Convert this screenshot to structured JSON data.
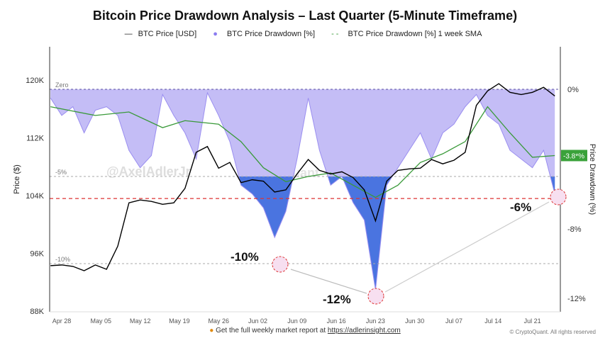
{
  "chart_data": {
    "type": "line",
    "title": "Bitcoin Price Drawdown Analysis – Last Quarter (5-Minute Timeframe)",
    "legend": {
      "placement": "top",
      "entries": [
        "BTC Price [USD]",
        "BTC Price Drawdown [%]",
        "BTC Price Drawdown [%] 1 week SMA"
      ]
    },
    "ylabel_left": "Price ($)",
    "ylabel_right": "Price Drawdown (%)",
    "left_ticks": [
      "120K",
      "112K",
      "104K",
      "96K",
      "88K"
    ],
    "left_tick_values": [
      120000,
      112000,
      104000,
      96000,
      88000
    ],
    "right_ticks": [
      "0%",
      "-8%",
      "-12%"
    ],
    "right_tick_values": [
      0,
      -8,
      -12
    ],
    "x_ticks": [
      "Apr 28",
      "May 05",
      "May 12",
      "May 19",
      "May 26",
      "Jun 02",
      "Jun 09",
      "Jun 16",
      "Jun 23",
      "Jun 30",
      "Jul 07",
      "Jul 14",
      "Jul 21"
    ],
    "x_tick_dates": [
      "2025-04-28",
      "2025-05-05",
      "2025-05-12",
      "2025-05-19",
      "2025-05-26",
      "2025-06-02",
      "2025-06-09",
      "2025-06-16",
      "2025-06-23",
      "2025-06-30",
      "2025-07-07",
      "2025-07-14",
      "2025-07-21"
    ],
    "x": [
      "2025-04-26",
      "2025-04-28",
      "2025-04-30",
      "2025-05-02",
      "2025-05-04",
      "2025-05-06",
      "2025-05-08",
      "2025-05-10",
      "2025-05-12",
      "2025-05-14",
      "2025-05-16",
      "2025-05-18",
      "2025-05-20",
      "2025-05-22",
      "2025-05-24",
      "2025-05-26",
      "2025-05-28",
      "2025-05-30",
      "2025-06-01",
      "2025-06-03",
      "2025-06-05",
      "2025-06-07",
      "2025-06-09",
      "2025-06-11",
      "2025-06-13",
      "2025-06-15",
      "2025-06-17",
      "2025-06-19",
      "2025-06-21",
      "2025-06-23",
      "2025-06-25",
      "2025-06-27",
      "2025-06-29",
      "2025-07-01",
      "2025-07-03",
      "2025-07-05",
      "2025-07-07",
      "2025-07-09",
      "2025-07-11",
      "2025-07-13",
      "2025-07-15",
      "2025-07-17",
      "2025-07-19",
      "2025-07-21",
      "2025-07-23",
      "2025-07-25"
    ],
    "series": [
      {
        "name": "BTC Price [USD]",
        "color": "#000000",
        "values": [
          94300,
          94400,
          94200,
          93600,
          94400,
          93800,
          97000,
          103000,
          103400,
          103200,
          102800,
          103000,
          105000,
          110000,
          110800,
          107800,
          108600,
          105800,
          106200,
          106000,
          104500,
          104800,
          107000,
          109000,
          107500,
          107000,
          107300,
          106500,
          104800,
          100500,
          106000,
          107500,
          107700,
          107800,
          109000,
          108400,
          108900,
          110000,
          116500,
          118500,
          119500,
          118300,
          118000,
          118300,
          119000,
          117800
        ]
      },
      {
        "name": "BTC Price Drawdown [%]",
        "color": "#8b7cf0",
        "values": [
          -0.5,
          -1.5,
          -1.0,
          -2.5,
          -1.2,
          -1.0,
          -1.5,
          -3.5,
          -4.5,
          -3.8,
          -0.3,
          -1.5,
          -2.5,
          -4.0,
          -0.2,
          -1.5,
          -3.0,
          -5.5,
          -6.0,
          -6.8,
          -8.5,
          -7.0,
          -4.0,
          -0.5,
          -3.5,
          -5.5,
          -5.0,
          -6.5,
          -7.5,
          -11.5,
          -5.5,
          -4.5,
          -3.5,
          -2.5,
          -4.0,
          -2.5,
          -2.0,
          -1.0,
          -0.3,
          -1.5,
          -2.0,
          -3.5,
          -4.0,
          -4.5,
          -3.5,
          -6.0
        ]
      },
      {
        "name": "BTC Price Drawdown [%] 1 week SMA",
        "color": "#3a9a3a",
        "x": [
          "2025-04-26",
          "2025-05-04",
          "2025-05-10",
          "2025-05-16",
          "2025-05-20",
          "2025-05-26",
          "2025-05-30",
          "2025-06-03",
          "2025-06-07",
          "2025-06-11",
          "2025-06-15",
          "2025-06-19",
          "2025-06-23",
          "2025-06-27",
          "2025-07-01",
          "2025-07-05",
          "2025-07-09",
          "2025-07-13",
          "2025-07-17",
          "2025-07-21",
          "2025-07-25"
        ],
        "values": [
          -1.0,
          -1.5,
          -1.3,
          -2.2,
          -1.8,
          -2.0,
          -3.0,
          -4.5,
          -5.3,
          -5.0,
          -4.8,
          -5.5,
          -6.2,
          -5.5,
          -4.2,
          -3.7,
          -3.0,
          -1.0,
          -2.5,
          -3.9,
          -3.8
        ]
      }
    ],
    "reference_lines": [
      {
        "label": "Zero",
        "value": 0
      },
      {
        "label": "-5%",
        "value": -5
      },
      {
        "label": "-10%",
        "value": -10
      }
    ],
    "support_price": 103600,
    "current_sma_badge": "-3.8*%",
    "annotations": [
      {
        "label": "-10%",
        "date": "2025-06-06",
        "value": -10
      },
      {
        "label": "-12%",
        "date": "2025-06-23",
        "value": -12
      },
      {
        "label": "-6%",
        "date": "2025-07-25",
        "value": -6
      }
    ],
    "watermarks": [
      "@AxelAdlerJr",
      "CryptoQuant"
    ],
    "grid": false
  },
  "footer": {
    "text": "Get the full weekly market report at ",
    "link": "https://adlerinsight.com",
    "copyright": "© CryptoQuant. All rights reserved"
  }
}
